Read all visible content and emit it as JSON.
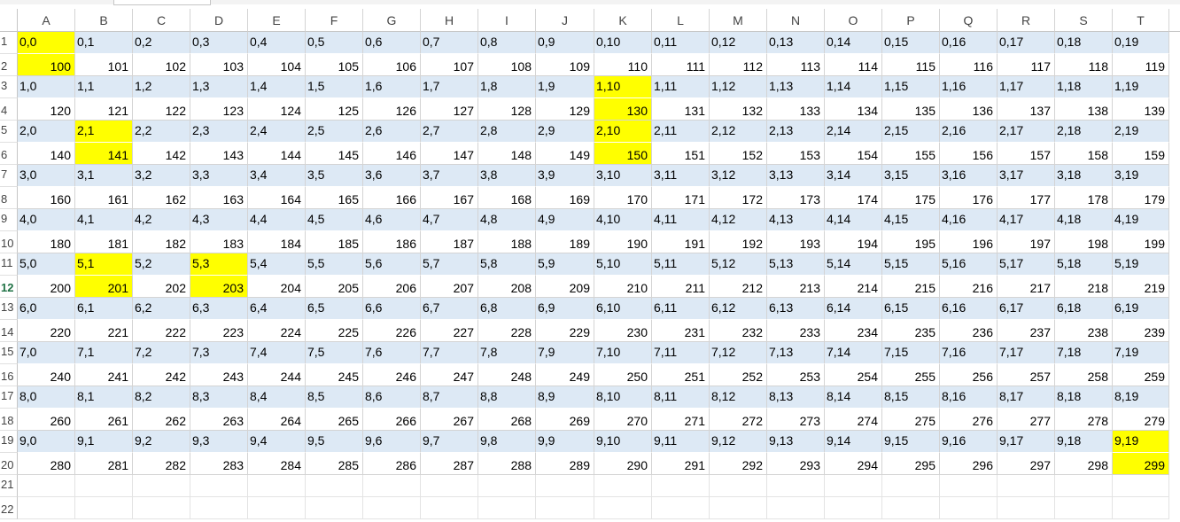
{
  "sheet": {
    "columns": [
      "A",
      "B",
      "C",
      "D",
      "E",
      "F",
      "G",
      "H",
      "I",
      "J",
      "K",
      "L",
      "M",
      "N",
      "O",
      "P",
      "Q",
      "R",
      "S",
      "T"
    ],
    "selected_row": 12,
    "highlight_color": "#ffff00",
    "band_color": "#dde9f5",
    "highlighted_cells": [
      "A1",
      "A2",
      "K3",
      "K4",
      "B5",
      "B6",
      "K5",
      "K6",
      "B11",
      "D11",
      "B12",
      "D12",
      "T19",
      "T20"
    ],
    "rows": [
      {
        "num": "1",
        "cells": [
          "0,0",
          "0,1",
          "0,2",
          "0,3",
          "0,4",
          "0,5",
          "0,6",
          "0,7",
          "0,8",
          "0,9",
          "0,10",
          "0,11",
          "0,12",
          "0,13",
          "0,14",
          "0,15",
          "0,16",
          "0,17",
          "0,18",
          "0,19"
        ]
      },
      {
        "num": "2",
        "cells": [
          "100",
          "101",
          "102",
          "103",
          "104",
          "105",
          "106",
          "107",
          "108",
          "109",
          "110",
          "111",
          "112",
          "113",
          "114",
          "115",
          "116",
          "117",
          "118",
          "119"
        ]
      },
      {
        "num": "3",
        "cells": [
          "1,0",
          "1,1",
          "1,2",
          "1,3",
          "1,4",
          "1,5",
          "1,6",
          "1,7",
          "1,8",
          "1,9",
          "1,10",
          "1,11",
          "1,12",
          "1,13",
          "1,14",
          "1,15",
          "1,16",
          "1,17",
          "1,18",
          "1,19"
        ]
      },
      {
        "num": "4",
        "cells": [
          "120",
          "121",
          "122",
          "123",
          "124",
          "125",
          "126",
          "127",
          "128",
          "129",
          "130",
          "131",
          "132",
          "133",
          "134",
          "135",
          "136",
          "137",
          "138",
          "139"
        ]
      },
      {
        "num": "5",
        "cells": [
          "2,0",
          "2,1",
          "2,2",
          "2,3",
          "2,4",
          "2,5",
          "2,6",
          "2,7",
          "2,8",
          "2,9",
          "2,10",
          "2,11",
          "2,12",
          "2,13",
          "2,14",
          "2,15",
          "2,16",
          "2,17",
          "2,18",
          "2,19"
        ]
      },
      {
        "num": "6",
        "cells": [
          "140",
          "141",
          "142",
          "143",
          "144",
          "145",
          "146",
          "147",
          "148",
          "149",
          "150",
          "151",
          "152",
          "153",
          "154",
          "155",
          "156",
          "157",
          "158",
          "159"
        ]
      },
      {
        "num": "7",
        "cells": [
          "3,0",
          "3,1",
          "3,2",
          "3,3",
          "3,4",
          "3,5",
          "3,6",
          "3,7",
          "3,8",
          "3,9",
          "3,10",
          "3,11",
          "3,12",
          "3,13",
          "3,14",
          "3,15",
          "3,16",
          "3,17",
          "3,18",
          "3,19"
        ]
      },
      {
        "num": "8",
        "cells": [
          "160",
          "161",
          "162",
          "163",
          "164",
          "165",
          "166",
          "167",
          "168",
          "169",
          "170",
          "171",
          "172",
          "173",
          "174",
          "175",
          "176",
          "177",
          "178",
          "179"
        ]
      },
      {
        "num": "9",
        "cells": [
          "4,0",
          "4,1",
          "4,2",
          "4,3",
          "4,4",
          "4,5",
          "4,6",
          "4,7",
          "4,8",
          "4,9",
          "4,10",
          "4,11",
          "4,12",
          "4,13",
          "4,14",
          "4,15",
          "4,16",
          "4,17",
          "4,18",
          "4,19"
        ]
      },
      {
        "num": "10",
        "cells": [
          "180",
          "181",
          "182",
          "183",
          "184",
          "185",
          "186",
          "187",
          "188",
          "189",
          "190",
          "191",
          "192",
          "193",
          "194",
          "195",
          "196",
          "197",
          "198",
          "199"
        ]
      },
      {
        "num": "11",
        "cells": [
          "5,0",
          "5,1",
          "5,2",
          "5,3",
          "5,4",
          "5,5",
          "5,6",
          "5,7",
          "5,8",
          "5,9",
          "5,10",
          "5,11",
          "5,12",
          "5,13",
          "5,14",
          "5,15",
          "5,16",
          "5,17",
          "5,18",
          "5,19"
        ]
      },
      {
        "num": "12",
        "cells": [
          "200",
          "201",
          "202",
          "203",
          "204",
          "205",
          "206",
          "207",
          "208",
          "209",
          "210",
          "211",
          "212",
          "213",
          "214",
          "215",
          "216",
          "217",
          "218",
          "219"
        ]
      },
      {
        "num": "13",
        "cells": [
          "6,0",
          "6,1",
          "6,2",
          "6,3",
          "6,4",
          "6,5",
          "6,6",
          "6,7",
          "6,8",
          "6,9",
          "6,10",
          "6,11",
          "6,12",
          "6,13",
          "6,14",
          "6,15",
          "6,16",
          "6,17",
          "6,18",
          "6,19"
        ]
      },
      {
        "num": "14",
        "cells": [
          "220",
          "221",
          "222",
          "223",
          "224",
          "225",
          "226",
          "227",
          "228",
          "229",
          "230",
          "231",
          "232",
          "233",
          "234",
          "235",
          "236",
          "237",
          "238",
          "239"
        ]
      },
      {
        "num": "15",
        "cells": [
          "7,0",
          "7,1",
          "7,2",
          "7,3",
          "7,4",
          "7,5",
          "7,6",
          "7,7",
          "7,8",
          "7,9",
          "7,10",
          "7,11",
          "7,12",
          "7,13",
          "7,14",
          "7,15",
          "7,16",
          "7,17",
          "7,18",
          "7,19"
        ]
      },
      {
        "num": "16",
        "cells": [
          "240",
          "241",
          "242",
          "243",
          "244",
          "245",
          "246",
          "247",
          "248",
          "249",
          "250",
          "251",
          "252",
          "253",
          "254",
          "255",
          "256",
          "257",
          "258",
          "259"
        ]
      },
      {
        "num": "17",
        "cells": [
          "8,0",
          "8,1",
          "8,2",
          "8,3",
          "8,4",
          "8,5",
          "8,6",
          "8,7",
          "8,8",
          "8,9",
          "8,10",
          "8,11",
          "8,12",
          "8,13",
          "8,14",
          "8,15",
          "8,16",
          "8,17",
          "8,18",
          "8,19"
        ]
      },
      {
        "num": "18",
        "cells": [
          "260",
          "261",
          "262",
          "263",
          "264",
          "265",
          "266",
          "267",
          "268",
          "269",
          "270",
          "271",
          "272",
          "273",
          "274",
          "275",
          "276",
          "277",
          "278",
          "279"
        ]
      },
      {
        "num": "19",
        "cells": [
          "9,0",
          "9,1",
          "9,2",
          "9,3",
          "9,4",
          "9,5",
          "9,6",
          "9,7",
          "9,8",
          "9,9",
          "9,10",
          "9,11",
          "9,12",
          "9,13",
          "9,14",
          "9,15",
          "9,16",
          "9,17",
          "9,18",
          "9,19"
        ]
      },
      {
        "num": "20",
        "cells": [
          "280",
          "281",
          "282",
          "283",
          "284",
          "285",
          "286",
          "287",
          "288",
          "289",
          "290",
          "291",
          "292",
          "293",
          "294",
          "295",
          "296",
          "297",
          "298",
          "299"
        ]
      },
      {
        "num": "21",
        "cells": []
      },
      {
        "num": "22",
        "cells": []
      }
    ]
  }
}
